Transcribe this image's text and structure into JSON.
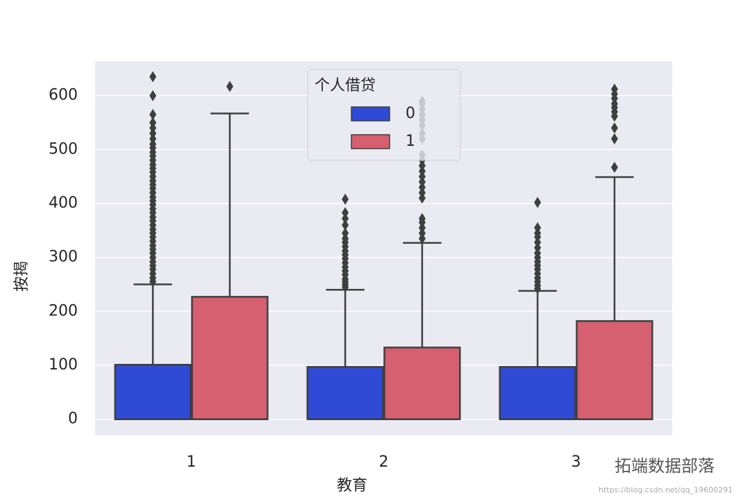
{
  "chart_data": {
    "type": "box",
    "x_label": "教育",
    "y_label": "按揭",
    "categories": [
      "1",
      "2",
      "3"
    ],
    "legend_title": "个人借贷",
    "legend": "upper center",
    "grid": true,
    "ylim": [
      -30,
      664
    ],
    "yticks": [
      0,
      100,
      200,
      300,
      400,
      500,
      600
    ],
    "series": [
      {
        "name": "0",
        "color": "#2f4bd6",
        "boxes": [
          {
            "low": 0,
            "q1": 0,
            "median": 0,
            "q3": 101,
            "high": 250,
            "outliers": [
              255,
              262,
              270,
              278,
              285,
              292,
              300,
              308,
              315,
              322,
              330,
              338,
              345,
              352,
              360,
              368,
              375,
              383,
              390,
              398,
              405,
              412,
              420,
              428,
              435,
              442,
              450,
              458,
              465,
              472,
              480,
              488,
              495,
              503,
              510,
              520,
              530,
              540,
              550,
              565,
              600,
              635
            ]
          },
          {
            "low": 0,
            "q1": 0,
            "median": 0,
            "q3": 97,
            "high": 240,
            "outliers": [
              245,
              250,
              255,
              260,
              268,
              275,
              282,
              290,
              298,
              305,
              312,
              320,
              328,
              335,
              345,
              360,
              372,
              383,
              408
            ]
          },
          {
            "low": 0,
            "q1": 0,
            "median": 0,
            "q3": 97,
            "high": 238,
            "outliers": [
              242,
              248,
              255,
              262,
              270,
              278,
              285,
              292,
              300,
              308,
              318,
              328,
              338,
              345,
              355,
              402
            ]
          }
        ]
      },
      {
        "name": "1",
        "color": "#d65f70",
        "boxes": [
          {
            "low": 0,
            "q1": 0,
            "median": 0,
            "q3": 227,
            "high": 567,
            "outliers": [
              617
            ]
          },
          {
            "low": 0,
            "q1": 0,
            "median": 0,
            "q3": 133,
            "high": 327,
            "outliers": [
              335,
              345,
              355,
              365,
              372,
              410,
              420,
              430,
              440,
              450,
              460,
              470,
              480,
              490,
              520,
              530,
              545,
              555,
              565,
              575,
              585,
              590
            ]
          },
          {
            "low": 0,
            "q1": 0,
            "median": 0,
            "q3": 182,
            "high": 449,
            "outliers": [
              467,
              520,
              540,
              562,
              570,
              578,
              585,
              595,
              603,
              612
            ]
          }
        ]
      }
    ]
  },
  "watermark": {
    "text": "拓端数据部落",
    "url": "https://blog.csdn.net/qq_19600291"
  }
}
